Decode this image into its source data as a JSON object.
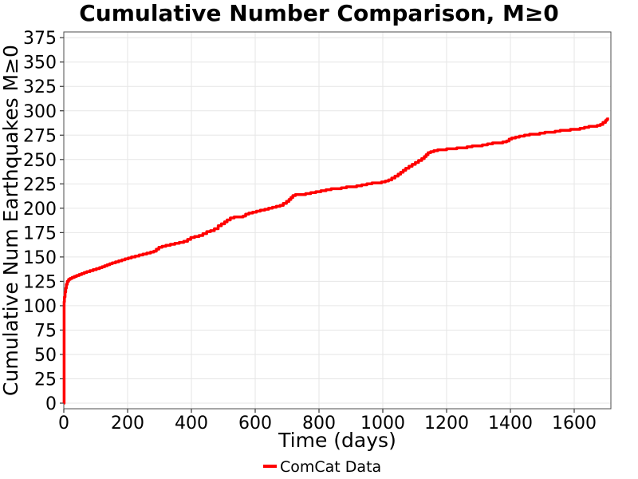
{
  "title": "Cumulative Number Comparison, M≥0",
  "colors": {
    "background": "#ffffff",
    "grid": "#e6e6e6",
    "spine": "#4d4d4d",
    "tick": "#333333",
    "text": "#000000",
    "series_red": "#ff0000"
  },
  "legend": {
    "entries": [
      {
        "label": "ComCat Data",
        "color": "#ff0000"
      }
    ],
    "position": "bottom-center"
  },
  "chart_data": {
    "type": "line",
    "title": "Cumulative Number Comparison, M≥0",
    "xlabel": "Time (days)",
    "ylabel": "Cumulative Num Earthquakes M≥0",
    "xlim": [
      0,
      1715
    ],
    "ylim": [
      0,
      375
    ],
    "xticks": [
      0,
      200,
      400,
      600,
      800,
      1000,
      1200,
      1400,
      1600
    ],
    "yticks": [
      0,
      25,
      50,
      75,
      100,
      125,
      150,
      175,
      200,
      225,
      250,
      275,
      300,
      325,
      350,
      375
    ],
    "grid": true,
    "legend_position": "bottom-center",
    "series": [
      {
        "name": "ComCat Data",
        "color": "#ff0000",
        "line_width": 3.5,
        "step": "after",
        "points": [
          [
            0,
            0
          ],
          [
            1,
            104
          ],
          [
            2,
            109
          ],
          [
            4,
            114
          ],
          [
            6,
            118
          ],
          [
            8,
            122
          ],
          [
            11,
            125
          ],
          [
            15,
            127
          ],
          [
            20,
            128
          ],
          [
            26,
            129
          ],
          [
            33,
            130
          ],
          [
            40,
            131
          ],
          [
            48,
            132
          ],
          [
            56,
            133
          ],
          [
            64,
            134
          ],
          [
            72,
            135
          ],
          [
            82,
            136
          ],
          [
            92,
            137
          ],
          [
            102,
            138
          ],
          [
            112,
            139
          ],
          [
            120,
            140
          ],
          [
            128,
            141
          ],
          [
            136,
            142
          ],
          [
            144,
            143
          ],
          [
            152,
            144
          ],
          [
            162,
            145
          ],
          [
            172,
            146
          ],
          [
            182,
            147
          ],
          [
            192,
            148
          ],
          [
            202,
            149
          ],
          [
            212,
            150
          ],
          [
            224,
            151
          ],
          [
            236,
            152
          ],
          [
            248,
            153
          ],
          [
            260,
            154
          ],
          [
            272,
            155
          ],
          [
            282,
            156
          ],
          [
            290,
            158
          ],
          [
            298,
            160
          ],
          [
            308,
            161
          ],
          [
            320,
            162
          ],
          [
            334,
            163
          ],
          [
            348,
            164
          ],
          [
            362,
            165
          ],
          [
            376,
            166
          ],
          [
            388,
            168
          ],
          [
            398,
            170
          ],
          [
            410,
            171
          ],
          [
            424,
            172
          ],
          [
            436,
            174
          ],
          [
            448,
            176
          ],
          [
            460,
            177
          ],
          [
            472,
            179
          ],
          [
            484,
            182
          ],
          [
            494,
            184
          ],
          [
            504,
            186
          ],
          [
            512,
            188
          ],
          [
            522,
            190
          ],
          [
            534,
            191
          ],
          [
            550,
            191
          ],
          [
            562,
            192
          ],
          [
            570,
            194
          ],
          [
            580,
            195
          ],
          [
            592,
            196
          ],
          [
            604,
            197
          ],
          [
            616,
            198
          ],
          [
            630,
            199
          ],
          [
            642,
            200
          ],
          [
            654,
            201
          ],
          [
            666,
            202
          ],
          [
            678,
            203
          ],
          [
            688,
            205
          ],
          [
            698,
            207
          ],
          [
            706,
            209
          ],
          [
            712,
            211
          ],
          [
            718,
            213
          ],
          [
            726,
            214
          ],
          [
            742,
            214
          ],
          [
            758,
            215
          ],
          [
            774,
            216
          ],
          [
            790,
            217
          ],
          [
            806,
            218
          ],
          [
            822,
            219
          ],
          [
            838,
            220
          ],
          [
            854,
            220
          ],
          [
            870,
            221
          ],
          [
            886,
            222
          ],
          [
            902,
            222
          ],
          [
            918,
            223
          ],
          [
            934,
            224
          ],
          [
            950,
            225
          ],
          [
            966,
            226
          ],
          [
            982,
            226
          ],
          [
            996,
            227
          ],
          [
            1008,
            228
          ],
          [
            1018,
            229
          ],
          [
            1028,
            231
          ],
          [
            1038,
            233
          ],
          [
            1048,
            235
          ],
          [
            1056,
            237
          ],
          [
            1064,
            239
          ],
          [
            1072,
            241
          ],
          [
            1082,
            243
          ],
          [
            1092,
            245
          ],
          [
            1102,
            247
          ],
          [
            1112,
            249
          ],
          [
            1122,
            251
          ],
          [
            1130,
            253
          ],
          [
            1136,
            255
          ],
          [
            1142,
            257
          ],
          [
            1150,
            258
          ],
          [
            1160,
            259
          ],
          [
            1172,
            260
          ],
          [
            1186,
            260
          ],
          [
            1200,
            261
          ],
          [
            1216,
            261
          ],
          [
            1232,
            262
          ],
          [
            1248,
            262
          ],
          [
            1264,
            263
          ],
          [
            1280,
            264
          ],
          [
            1296,
            264
          ],
          [
            1312,
            265
          ],
          [
            1328,
            266
          ],
          [
            1344,
            267
          ],
          [
            1360,
            267
          ],
          [
            1376,
            268
          ],
          [
            1388,
            269
          ],
          [
            1396,
            271
          ],
          [
            1404,
            272
          ],
          [
            1416,
            273
          ],
          [
            1428,
            274
          ],
          [
            1444,
            275
          ],
          [
            1460,
            276
          ],
          [
            1476,
            276
          ],
          [
            1492,
            277
          ],
          [
            1508,
            278
          ],
          [
            1524,
            278
          ],
          [
            1540,
            279
          ],
          [
            1556,
            280
          ],
          [
            1572,
            280
          ],
          [
            1588,
            281
          ],
          [
            1604,
            281
          ],
          [
            1618,
            282
          ],
          [
            1632,
            283
          ],
          [
            1646,
            284
          ],
          [
            1660,
            284
          ],
          [
            1672,
            285
          ],
          [
            1682,
            286
          ],
          [
            1690,
            288
          ],
          [
            1698,
            290
          ],
          [
            1702,
            291
          ],
          [
            1705,
            293
          ]
        ]
      }
    ]
  }
}
